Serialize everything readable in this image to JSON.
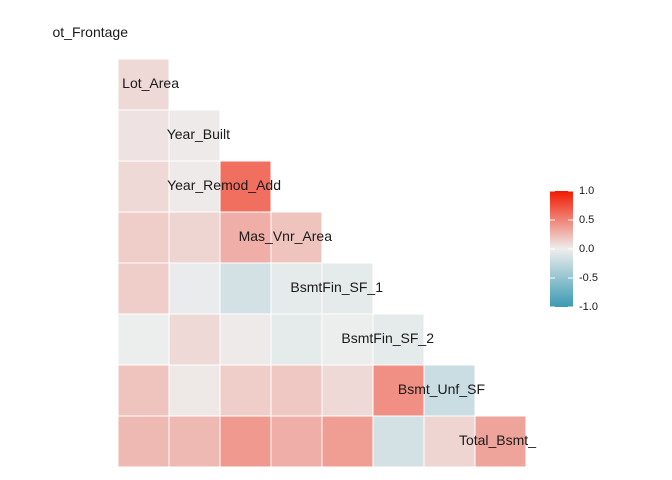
{
  "chart_data": {
    "type": "heatmap",
    "title": "",
    "variables": [
      "Lot_Frontage",
      "Lot_Area",
      "Year_Built",
      "Year_Remod_Add",
      "Mas_Vnr_Area",
      "BsmtFin_SF_1",
      "BsmtFin_SF_2",
      "Bsmt_Unf_SF",
      "Total_Bsmt_"
    ],
    "display_labels": [
      "ot_Frontage",
      "Lot_Area",
      "Year_Built",
      "Year_Remod_Add",
      "Mas_Vnr_Area",
      "BsmtFin_SF_1",
      "BsmtFin_SF_2",
      "Bsmt_Unf_SF",
      "Total_Bsmt_"
    ],
    "correlations": [
      [
        1.0,
        0.1,
        0.05,
        0.1,
        0.15,
        0.15,
        -0.01,
        0.2,
        0.25
      ],
      [
        0.1,
        1.0,
        0.02,
        0.02,
        0.12,
        -0.03,
        0.1,
        0.03,
        0.25
      ],
      [
        0.05,
        0.02,
        1.0,
        0.6,
        0.3,
        -0.15,
        0.02,
        0.15,
        0.4
      ],
      [
        0.1,
        0.02,
        0.6,
        1.0,
        0.2,
        -0.05,
        -0.05,
        0.18,
        0.3
      ],
      [
        0.15,
        0.12,
        0.3,
        0.2,
        1.0,
        -0.05,
        -0.01,
        0.1,
        0.38
      ],
      [
        0.15,
        -0.03,
        -0.15,
        -0.05,
        -0.05,
        1.0,
        -0.05,
        0.45,
        -0.15
      ],
      [
        -0.01,
        0.1,
        0.02,
        -0.05,
        -0.01,
        -0.05,
        1.0,
        -0.2,
        0.12
      ],
      [
        0.2,
        0.03,
        0.15,
        0.18,
        0.1,
        0.45,
        -0.2,
        1.0,
        0.35
      ],
      [
        0.25,
        0.25,
        0.4,
        0.3,
        0.38,
        -0.15,
        0.12,
        0.35,
        1.0
      ]
    ],
    "scale": {
      "min": -1.0,
      "max": 1.0,
      "low_color": "#3A9AB2",
      "mid_color": "#EEEEEE",
      "high_color": "#F21A00",
      "ticks": [
        "1.0",
        "0.5",
        "0.0",
        "-0.5",
        "-1.0"
      ]
    },
    "grid": false,
    "legend_position": "right"
  }
}
